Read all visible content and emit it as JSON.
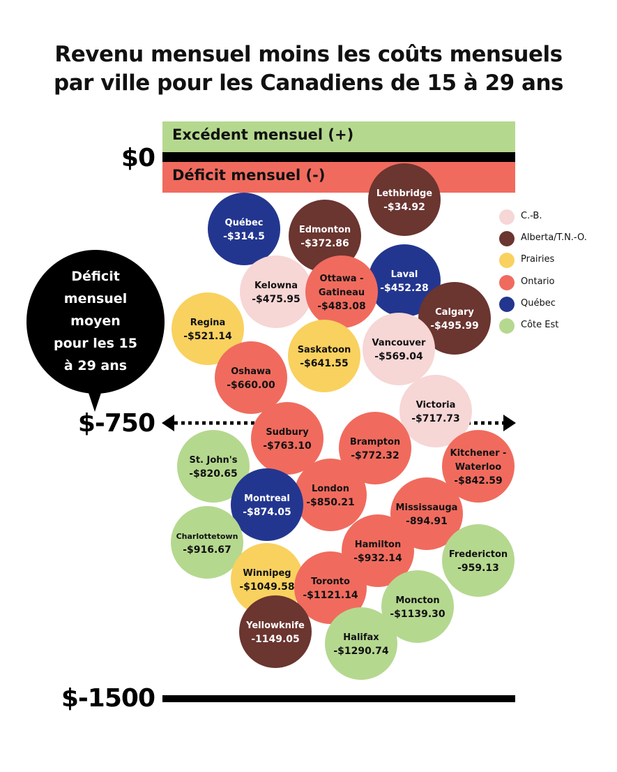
{
  "title": {
    "line1": "Revenu mensuel moins les coûts mensuels",
    "line2": "par ville pour les Canadiens de 15 à 29 ans"
  },
  "bands": {
    "surplus": "Excédent mensuel (+)",
    "deficit": "Déficit mensuel (-)"
  },
  "axis": {
    "zero": "$0",
    "mid": "$-750",
    "bottom": "$-1500"
  },
  "callout": {
    "lines": [
      "Déficit",
      "mensuel",
      "moyen",
      "pour les 15",
      "à 29 ans"
    ]
  },
  "legend": [
    {
      "label": "C.-B.",
      "color": "#f7d6d6"
    },
    {
      "label": "Alberta/T.N.-O.",
      "color": "#6b3530"
    },
    {
      "label": "Prairies",
      "color": "#f9d15f"
    },
    {
      "label": "Ontario",
      "color": "#f06b5e"
    },
    {
      "label": "Québec",
      "color": "#23368f"
    },
    {
      "label": "Côte Est",
      "color": "#b5d88f"
    }
  ],
  "chart_data": {
    "type": "scatter",
    "title": "Revenu mensuel moins les coûts mensuels par ville pour les Canadiens de 15 à 29 ans",
    "ylim": [
      -1500,
      0
    ],
    "average_line": -750,
    "points": [
      {
        "name": "Lethbridge",
        "label": "-$34.92",
        "value": -34.92,
        "region": "Alberta/T.N.-O."
      },
      {
        "name": "Québec",
        "label": "-$314.5",
        "value": -314.5,
        "region": "Québec"
      },
      {
        "name": "Edmonton",
        "label": "-$372.86",
        "value": -372.86,
        "region": "Alberta/T.N.-O."
      },
      {
        "name": "Laval",
        "label": "-$452.28",
        "value": -452.28,
        "region": "Québec"
      },
      {
        "name": "Kelowna",
        "label": "-$475.95",
        "value": -475.95,
        "region": "C.-B."
      },
      {
        "name": "Ottawa - Gatineau",
        "label": "-$483.08",
        "value": -483.08,
        "region": "Ontario"
      },
      {
        "name": "Calgary",
        "label": "-$495.99",
        "value": -495.99,
        "region": "Alberta/T.N.-O."
      },
      {
        "name": "Regina",
        "label": "-$521.14",
        "value": -521.14,
        "region": "Prairies"
      },
      {
        "name": "Vancouver",
        "label": "-$569.04",
        "value": -569.04,
        "region": "C.-B."
      },
      {
        "name": "Saskatoon",
        "label": "-$641.55",
        "value": -641.55,
        "region": "Prairies"
      },
      {
        "name": "Oshawa",
        "label": "-$660.00",
        "value": -660.0,
        "region": "Ontario"
      },
      {
        "name": "Victoria",
        "label": "-$717.73",
        "value": -717.73,
        "region": "C.-B."
      },
      {
        "name": "Sudbury",
        "label": "-$763.10",
        "value": -763.1,
        "region": "Ontario"
      },
      {
        "name": "Brampton",
        "label": "-$772.32",
        "value": -772.32,
        "region": "Ontario"
      },
      {
        "name": "St. John's",
        "label": "-$820.65",
        "value": -820.65,
        "region": "Côte Est"
      },
      {
        "name": "Kitchener - Waterloo",
        "label": "-$842.59",
        "value": -842.59,
        "region": "Ontario"
      },
      {
        "name": "London",
        "label": "-$850.21",
        "value": -850.21,
        "region": "Ontario"
      },
      {
        "name": "Montreal",
        "label": "-$874.05",
        "value": -874.05,
        "region": "Québec"
      },
      {
        "name": "Mississauga",
        "label": "-894.91",
        "value": -894.91,
        "region": "Ontario"
      },
      {
        "name": "Charlottetown",
        "label": "-$916.67",
        "value": -916.67,
        "region": "Côte Est"
      },
      {
        "name": "Hamilton",
        "label": "-$932.14",
        "value": -932.14,
        "region": "Ontario"
      },
      {
        "name": "Fredericton",
        "label": "-959.13",
        "value": -959.13,
        "region": "Côte Est"
      },
      {
        "name": "Winnipeg",
        "label": "-$1049.58",
        "value": -1049.58,
        "region": "Prairies"
      },
      {
        "name": "Toronto",
        "label": "-$1121.14",
        "value": -1121.14,
        "region": "Ontario"
      },
      {
        "name": "Moncton",
        "label": "-$1139.30",
        "value": -1139.3,
        "region": "Côte Est"
      },
      {
        "name": "Yellowknife",
        "label": "-1149.05",
        "value": -1149.05,
        "region": "Alberta/T.N.-O."
      },
      {
        "name": "Halifax",
        "label": "-$1290.74",
        "value": -1290.74,
        "region": "Côte Est"
      }
    ]
  }
}
